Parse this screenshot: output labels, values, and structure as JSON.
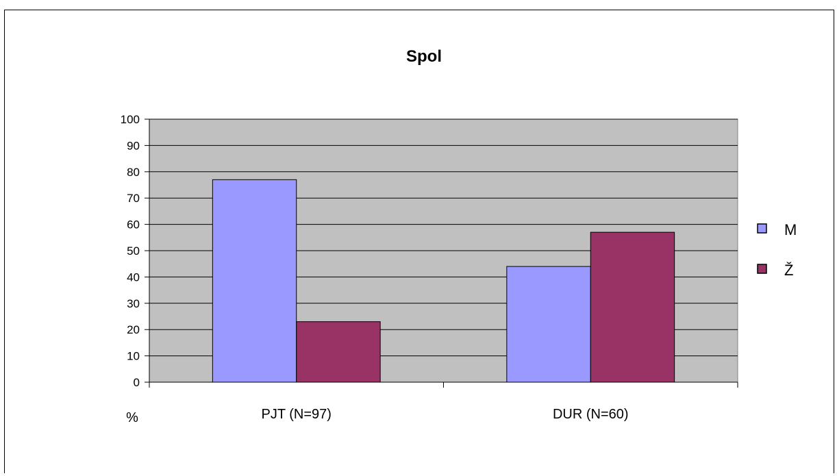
{
  "chart_data": {
    "type": "bar",
    "title": "Spol",
    "xlabel": "",
    "ylabel": "%",
    "categories": [
      "PJT  (N=97)",
      "DUR  (N=60)"
    ],
    "series": [
      {
        "name": "M",
        "values": [
          77,
          44
        ],
        "color": "#9999ff"
      },
      {
        "name": "Ž",
        "values": [
          23,
          57
        ],
        "color": "#993366"
      }
    ],
    "ylim": [
      0,
      100
    ],
    "yticks": [
      "0",
      "10",
      "20",
      "30",
      "40",
      "50",
      "60",
      "70",
      "80",
      "90",
      "100"
    ],
    "grid": true,
    "plot_background": "#c0c0c0",
    "legend_position": "right"
  }
}
